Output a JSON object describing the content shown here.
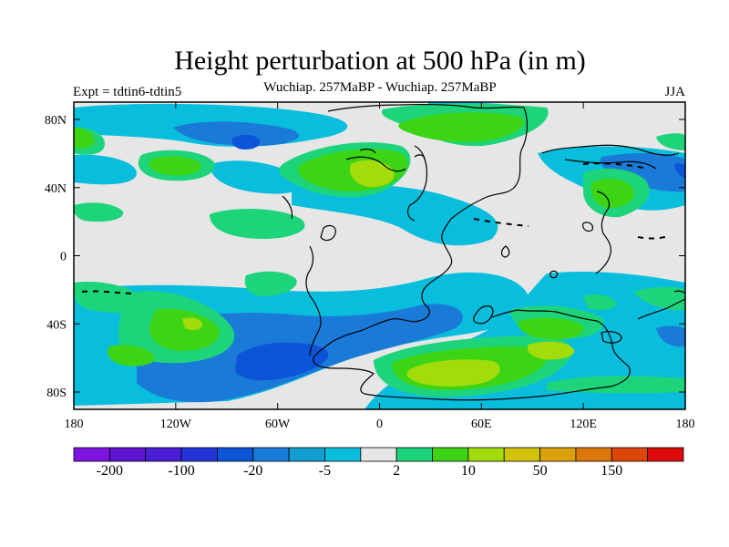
{
  "title": "Height perturbation at 500 hPa (in m)",
  "left_label": "Expt = tdtin6-tdtin5",
  "center_label": "Wuchiap. 257MaBP - Wuchiap. 257MaBP",
  "right_label": "JJA",
  "map": {
    "x_ticks": [
      "180",
      "120W",
      "60W",
      "0",
      "60E",
      "120E",
      "180"
    ],
    "y_ticks": [
      "80N",
      "40N",
      "0",
      "40S",
      "80S"
    ],
    "background_color": "#e6e6e6"
  },
  "colorbar": {
    "colors": [
      "#7f14e0",
      "#5e14d2",
      "#4a1ed6",
      "#2436d8",
      "#0c54d8",
      "#1a7ad8",
      "#129ed0",
      "#08bedc",
      "#e6e6e6",
      "#1ed47a",
      "#3cd414",
      "#a2dc0a",
      "#d2c20a",
      "#dca20a",
      "#dc780a",
      "#dc460a",
      "#dc0a0a"
    ],
    "labels": [
      {
        "text": "-200",
        "index": 1
      },
      {
        "text": "-100",
        "index": 3
      },
      {
        "text": "-20",
        "index": 5
      },
      {
        "text": "-5",
        "index": 7
      },
      {
        "text": "2",
        "index": 9
      },
      {
        "text": "10",
        "index": 11
      },
      {
        "text": "50",
        "index": 13
      },
      {
        "text": "150",
        "index": 15
      }
    ]
  }
}
